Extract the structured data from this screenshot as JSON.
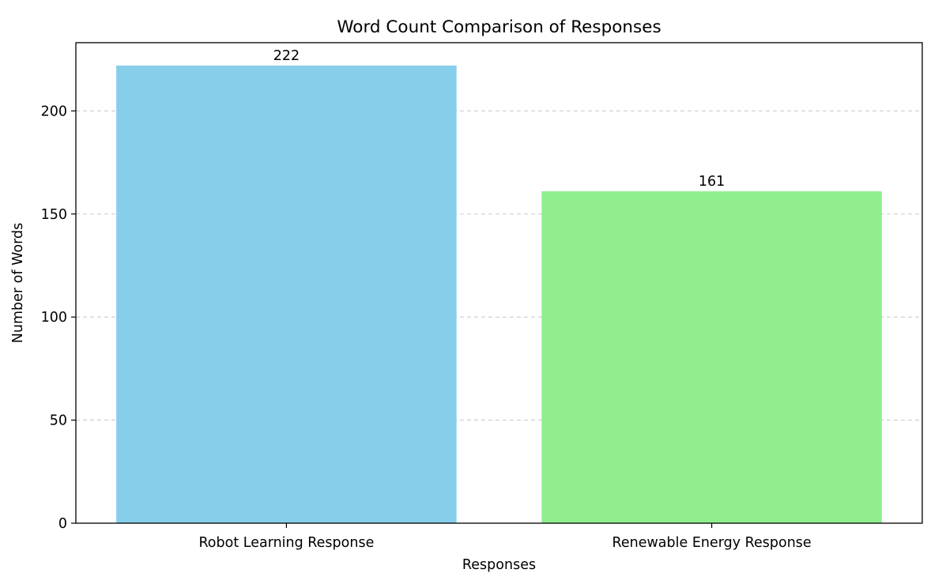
{
  "chart_data": {
    "type": "bar",
    "title": "Word Count Comparison of Responses",
    "xlabel": "Responses",
    "ylabel": "Number of Words",
    "categories": [
      "Robot Learning Response",
      "Renewable Energy Response"
    ],
    "values": [
      222,
      161
    ],
    "data_labels": [
      "222",
      "161"
    ],
    "colors": [
      "#87ceeb",
      "#90ee90"
    ],
    "ylim": [
      0,
      233.1
    ],
    "yticks": [
      0,
      50,
      100,
      150,
      200
    ],
    "ytick_labels": [
      "0",
      "50",
      "100",
      "150",
      "200"
    ],
    "grid": "y-dashed",
    "grid_color": "#cccccc",
    "legend": "none"
  }
}
